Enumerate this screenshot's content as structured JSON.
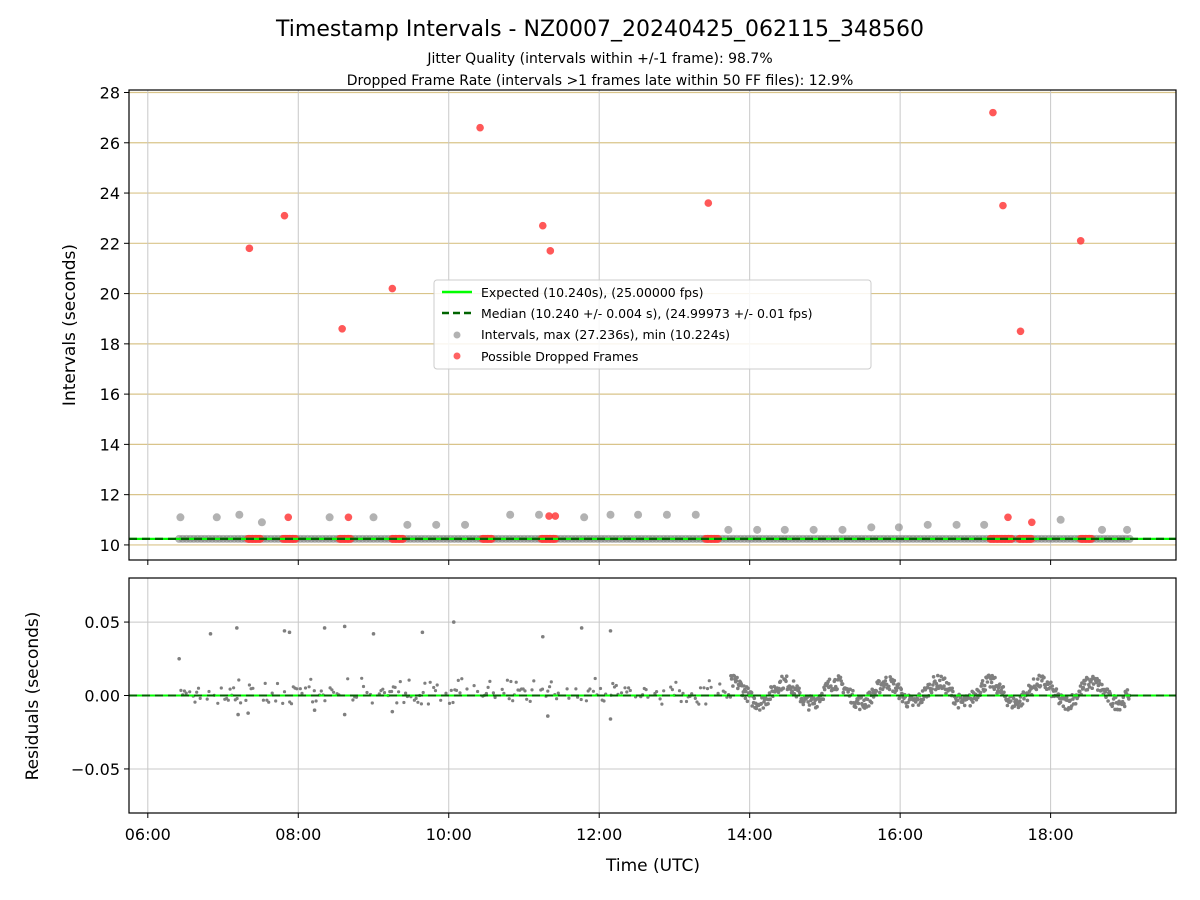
{
  "figure": {
    "title": "Timestamp Intervals - NZ0007_20240425_062115_348560",
    "subtitle_1": "Jitter Quality (intervals within +/-1 frame): 98.7%",
    "subtitle_2": "Dropped Frame Rate (intervals >1 frames late within 50 FF files): 12.9%"
  },
  "chart_data": [
    {
      "type": "scatter",
      "panel": "intervals",
      "title": "Timestamp Intervals - NZ0007_20240425_062115_348560",
      "xlabel": "",
      "ylabel": "Intervals (seconds)",
      "xlim": [
        "05:45",
        "19:40"
      ],
      "ylim": [
        9.4,
        28.1
      ],
      "yticks": [
        10,
        12,
        14,
        16,
        18,
        20,
        22,
        24,
        26,
        28
      ],
      "xticks": [
        "06:00",
        "08:00",
        "10:00",
        "12:00",
        "14:00",
        "16:00",
        "18:00"
      ],
      "grid": "on",
      "legend_position": "center",
      "colors": {
        "expected": "#00ff00",
        "median": "#006400",
        "intervals": "#7f7f7f",
        "dropped": "#ff3b3b",
        "hgrid": "#d9c48a",
        "vgrid": "#c8c8c8",
        "band": "#555555"
      },
      "series": [
        {
          "name": "Expected (10.240s), (25.00000 fps)",
          "kind": "hline",
          "y": 10.24
        },
        {
          "name": "Median (10.240 +/- 0.004 s), (24.99973 +/- 0.01 fps)",
          "kind": "hline-dashed",
          "y": 10.24
        },
        {
          "name": "Intervals, max (27.236s), min (10.224s)",
          "kind": "points",
          "band": {
            "x_start": "06:25",
            "x_end": "19:03",
            "y": 10.24
          },
          "points": [
            [
              "06:26",
              11.1
            ],
            [
              "06:55",
              11.1
            ],
            [
              "07:13",
              11.2
            ],
            [
              "07:31",
              10.9
            ],
            [
              "08:25",
              11.1
            ],
            [
              "09:00",
              11.1
            ],
            [
              "09:27",
              10.8
            ],
            [
              "09:50",
              10.8
            ],
            [
              "10:13",
              10.8
            ],
            [
              "10:49",
              11.2
            ],
            [
              "11:12",
              11.2
            ],
            [
              "11:48",
              11.1
            ],
            [
              "12:09",
              11.2
            ],
            [
              "12:31",
              11.2
            ],
            [
              "12:54",
              11.2
            ],
            [
              "13:17",
              11.2
            ],
            [
              "13:43",
              10.6
            ],
            [
              "14:06",
              10.6
            ],
            [
              "14:28",
              10.6
            ],
            [
              "14:51",
              10.6
            ],
            [
              "15:14",
              10.6
            ],
            [
              "15:37",
              10.7
            ],
            [
              "15:59",
              10.7
            ],
            [
              "16:22",
              10.8
            ],
            [
              "16:45",
              10.8
            ],
            [
              "17:07",
              10.8
            ],
            [
              "18:08",
              11.0
            ],
            [
              "18:41",
              10.6
            ],
            [
              "19:01",
              10.6
            ]
          ]
        },
        {
          "name": "Possible Dropped Frames",
          "kind": "points",
          "points": [
            [
              "07:21",
              21.8
            ],
            [
              "07:49",
              23.1
            ],
            [
              "07:52",
              11.1
            ],
            [
              "08:35",
              18.6
            ],
            [
              "08:40",
              11.1
            ],
            [
              "09:15",
              20.2
            ],
            [
              "10:25",
              26.6
            ],
            [
              "11:15",
              22.7
            ],
            [
              "11:20",
              11.15
            ],
            [
              "11:21",
              21.7
            ],
            [
              "11:25",
              11.15
            ],
            [
              "13:27",
              23.6
            ],
            [
              "17:14",
              27.2
            ],
            [
              "17:22",
              23.5
            ],
            [
              "17:26",
              11.1
            ],
            [
              "17:36",
              18.5
            ],
            [
              "17:45",
              10.9
            ],
            [
              "18:24",
              22.1
            ]
          ],
          "clusters_at_expected": [
            [
              "07:20",
              "07:30"
            ],
            [
              "07:48",
              "07:58"
            ],
            [
              "08:33",
              "08:42"
            ],
            [
              "09:15",
              "09:24"
            ],
            [
              "10:27",
              "10:35"
            ],
            [
              "11:14",
              "11:26"
            ],
            [
              "13:25",
              "13:35"
            ],
            [
              "17:12",
              "17:30"
            ],
            [
              "17:35",
              "17:45"
            ],
            [
              "18:24",
              "18:33"
            ]
          ]
        }
      ]
    },
    {
      "type": "scatter",
      "panel": "residuals",
      "xlabel": "Time (UTC)",
      "ylabel": "Residuals (seconds)",
      "xlim": [
        "05:45",
        "19:40"
      ],
      "ylim": [
        -0.08,
        0.08
      ],
      "yticks": [
        -0.05,
        0.0,
        0.05
      ],
      "ytick_labels": [
        "−0.05",
        "0.00",
        "0.05"
      ],
      "xticks": [
        "06:00",
        "08:00",
        "10:00",
        "12:00",
        "14:00",
        "16:00",
        "18:00"
      ],
      "grid": "on",
      "baseline": 0.0,
      "dense_region": {
        "x_start": "13:45",
        "x_end": "19:03",
        "y_range": [
          -0.008,
          0.012
        ]
      },
      "outliers": [
        [
          "06:25",
          0.025
        ],
        [
          "06:50",
          0.042
        ],
        [
          "07:11",
          0.046
        ],
        [
          "07:49",
          0.044
        ],
        [
          "07:53",
          0.043
        ],
        [
          "08:21",
          0.046
        ],
        [
          "08:37",
          0.047
        ],
        [
          "09:00",
          0.042
        ],
        [
          "09:39",
          0.043
        ],
        [
          "10:04",
          0.05
        ],
        [
          "11:15",
          0.04
        ],
        [
          "11:46",
          0.046
        ],
        [
          "12:09",
          0.044
        ],
        [
          "12:09",
          -0.016
        ],
        [
          "07:12",
          -0.013
        ],
        [
          "07:20",
          -0.012
        ],
        [
          "08:13",
          -0.01
        ],
        [
          "08:37",
          -0.013
        ],
        [
          "09:15",
          -0.011
        ],
        [
          "11:19",
          -0.014
        ]
      ]
    }
  ]
}
